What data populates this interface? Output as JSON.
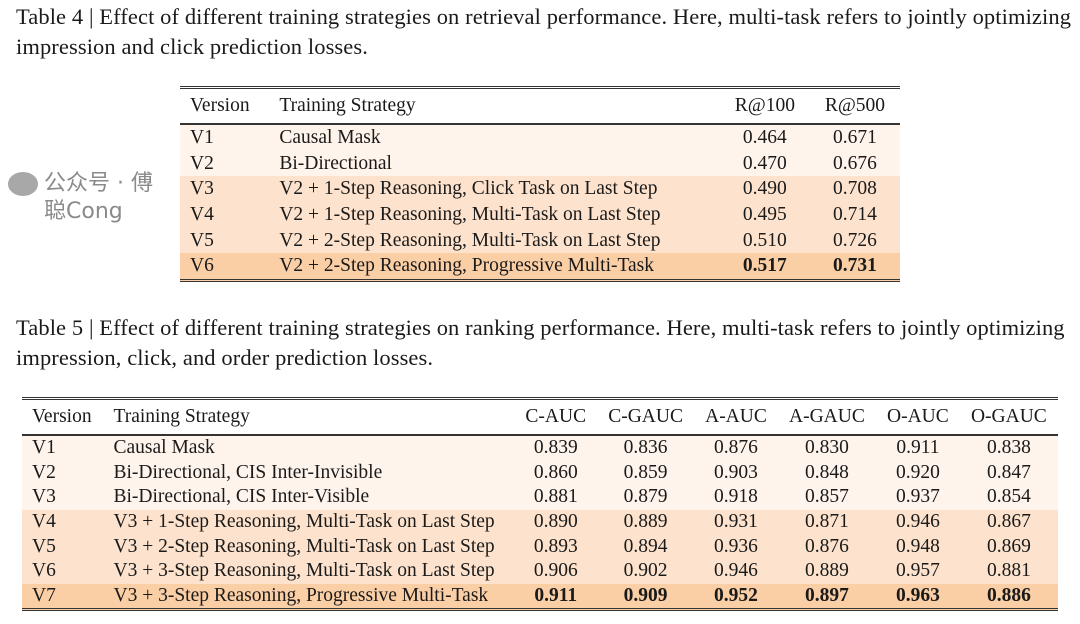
{
  "table4": {
    "caption": "Table 4 | Effect of different training strategies on retrieval performance. Here, multi-task refers to jointly optimizing impression and click prediction losses.",
    "headers": [
      "Version",
      "Training Strategy",
      "R@100",
      "R@500"
    ],
    "rows": [
      [
        "V1",
        "Causal Mask",
        "0.464",
        "0.671"
      ],
      [
        "V2",
        "Bi-Directional",
        "0.470",
        "0.676"
      ],
      [
        "V3",
        "V2 + 1-Step Reasoning, Click Task on Last Step",
        "0.490",
        "0.708"
      ],
      [
        "V4",
        "V2 + 1-Step Reasoning, Multi-Task on Last Step",
        "0.495",
        "0.714"
      ],
      [
        "V5",
        "V2 + 2-Step Reasoning, Multi-Task on Last Step",
        "0.510",
        "0.726"
      ],
      [
        "V6",
        "V2 + 2-Step Reasoning, Progressive Multi-Task",
        "0.517",
        "0.731"
      ]
    ]
  },
  "table5": {
    "caption": "Table 5 | Effect of different training strategies on ranking performance. Here, multi-task refers to jointly optimizing impression, click, and order prediction losses.",
    "headers": [
      "Version",
      "Training Strategy",
      "C-AUC",
      "C-GAUC",
      "A-AUC",
      "A-GAUC",
      "O-AUC",
      "O-GAUC"
    ],
    "rows": [
      [
        "V1",
        "Causal Mask",
        "0.839",
        "0.836",
        "0.876",
        "0.830",
        "0.911",
        "0.838"
      ],
      [
        "V2",
        "Bi-Directional, CIS Inter-Invisible",
        "0.860",
        "0.859",
        "0.903",
        "0.848",
        "0.920",
        "0.847"
      ],
      [
        "V3",
        "Bi-Directional, CIS Inter-Visible",
        "0.881",
        "0.879",
        "0.918",
        "0.857",
        "0.937",
        "0.854"
      ],
      [
        "V4",
        "V3 + 1-Step Reasoning, Multi-Task on Last Step",
        "0.890",
        "0.889",
        "0.931",
        "0.871",
        "0.946",
        "0.867"
      ],
      [
        "V5",
        "V3 + 2-Step Reasoning, Multi-Task on Last Step",
        "0.893",
        "0.894",
        "0.936",
        "0.876",
        "0.948",
        "0.869"
      ],
      [
        "V6",
        "V3 + 3-Step Reasoning, Multi-Task on Last Step",
        "0.906",
        "0.902",
        "0.946",
        "0.889",
        "0.957",
        "0.881"
      ],
      [
        "V7",
        "V3 + 3-Step Reasoning, Progressive Multi-Task",
        "0.911",
        "0.909",
        "0.952",
        "0.897",
        "0.963",
        "0.886"
      ]
    ]
  },
  "colors": {
    "light": "#fef4ec",
    "medium": "#fde3cd",
    "strong": "#fbcfa6"
  },
  "watermark": "公众号 · 傅聪Cong"
}
